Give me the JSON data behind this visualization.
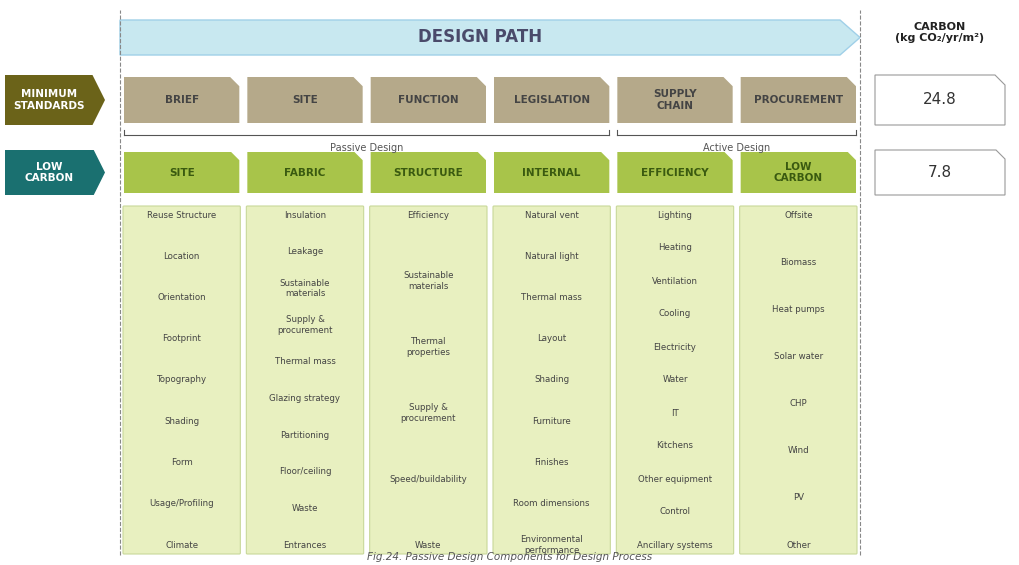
{
  "title": "Fig.24. Passive Design Components for Design Process",
  "arrow_text": "DESIGN PATH",
  "carbon_label": "CARBON\n(kg CO₂/yr/m²)",
  "min_standards_label": "MINIMUM\nSTANDARDS",
  "low_carbon_label": "LOW\nCARBON",
  "passive_design_label": "Passive Design",
  "active_design_label": "Active Design",
  "min_standards_value": "24.8",
  "low_carbon_value": "7.8",
  "min_std_boxes": [
    "BRIEF",
    "SITE",
    "FUNCTION",
    "LEGISLATION",
    "SUPPLY\nCHAIN",
    "PROCUREMENT"
  ],
  "low_carbon_boxes": [
    "SITE",
    "FABRIC",
    "STRUCTURE",
    "INTERNAL",
    "EFFICIENCY",
    "LOW\nCARBON"
  ],
  "min_std_color": "#b5a98a",
  "low_carbon_header_color": "#a8c44a",
  "low_carbon_body_color": "#e8f0c0",
  "min_standards_bg": "#6b6319",
  "low_carbon_bg": "#1a7070",
  "arrow_color": "#c8e8f0",
  "detail_columns": [
    [
      "Reuse Structure",
      "Location",
      "Orientation",
      "Footprint",
      "Topography",
      "Shading",
      "Form",
      "Usage/Profiling",
      "Climate"
    ],
    [
      "Insulation",
      "Leakage",
      "Sustainable\nmaterials",
      "Supply &\nprocurement",
      "Thermal mass",
      "Glazing strategy",
      "Partitioning",
      "Floor/ceiling",
      "Waste",
      "Entrances"
    ],
    [
      "Efficiency",
      "Sustainable\nmaterials",
      "Thermal\nproperties",
      "Supply &\nprocurement",
      "Speed/buildability",
      "Waste"
    ],
    [
      "Natural vent",
      "Natural light",
      "Thermal mass",
      "Layout",
      "Shading",
      "Furniture",
      "Finishes",
      "Room dimensions",
      "Environmental\nperformance"
    ],
    [
      "Lighting",
      "Heating",
      "Ventilation",
      "Cooling",
      "Electricity",
      "Water",
      "IT",
      "Kitchens",
      "Other equipment",
      "Control",
      "Ancillary systems"
    ],
    [
      "Offsite",
      "Biomass",
      "Heat pumps",
      "Solar water",
      "CHP",
      "Wind",
      "PV",
      "Other"
    ]
  ],
  "bg_color": "#ffffff",
  "dashed_line_color": "#888888",
  "border_color": "#aaaaaa"
}
